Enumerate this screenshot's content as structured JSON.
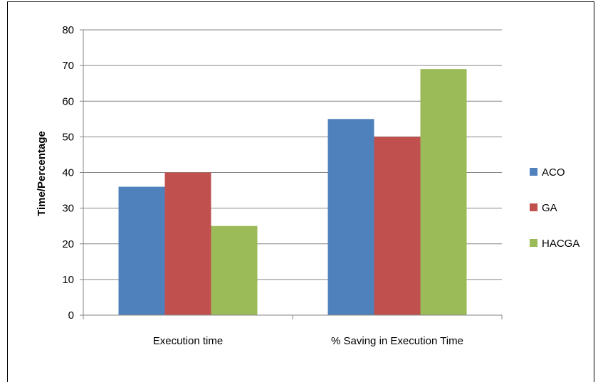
{
  "chart_data": {
    "type": "bar",
    "title": "",
    "xlabel": "",
    "ylabel": "Time/Percentage",
    "categories": [
      "Execution time",
      "% Saving in Execution Time"
    ],
    "series": [
      {
        "name": "ACO",
        "color": "#4F81BD",
        "values": [
          36,
          55
        ]
      },
      {
        "name": "GA",
        "color": "#C0504D",
        "values": [
          40,
          50
        ]
      },
      {
        "name": "HACGA",
        "color": "#9BBB59",
        "values": [
          25,
          69
        ]
      }
    ],
    "ylim": [
      0,
      80
    ],
    "yticks": [
      0,
      10,
      20,
      30,
      40,
      50,
      60,
      70,
      80
    ],
    "grid": true,
    "legend": "right"
  }
}
